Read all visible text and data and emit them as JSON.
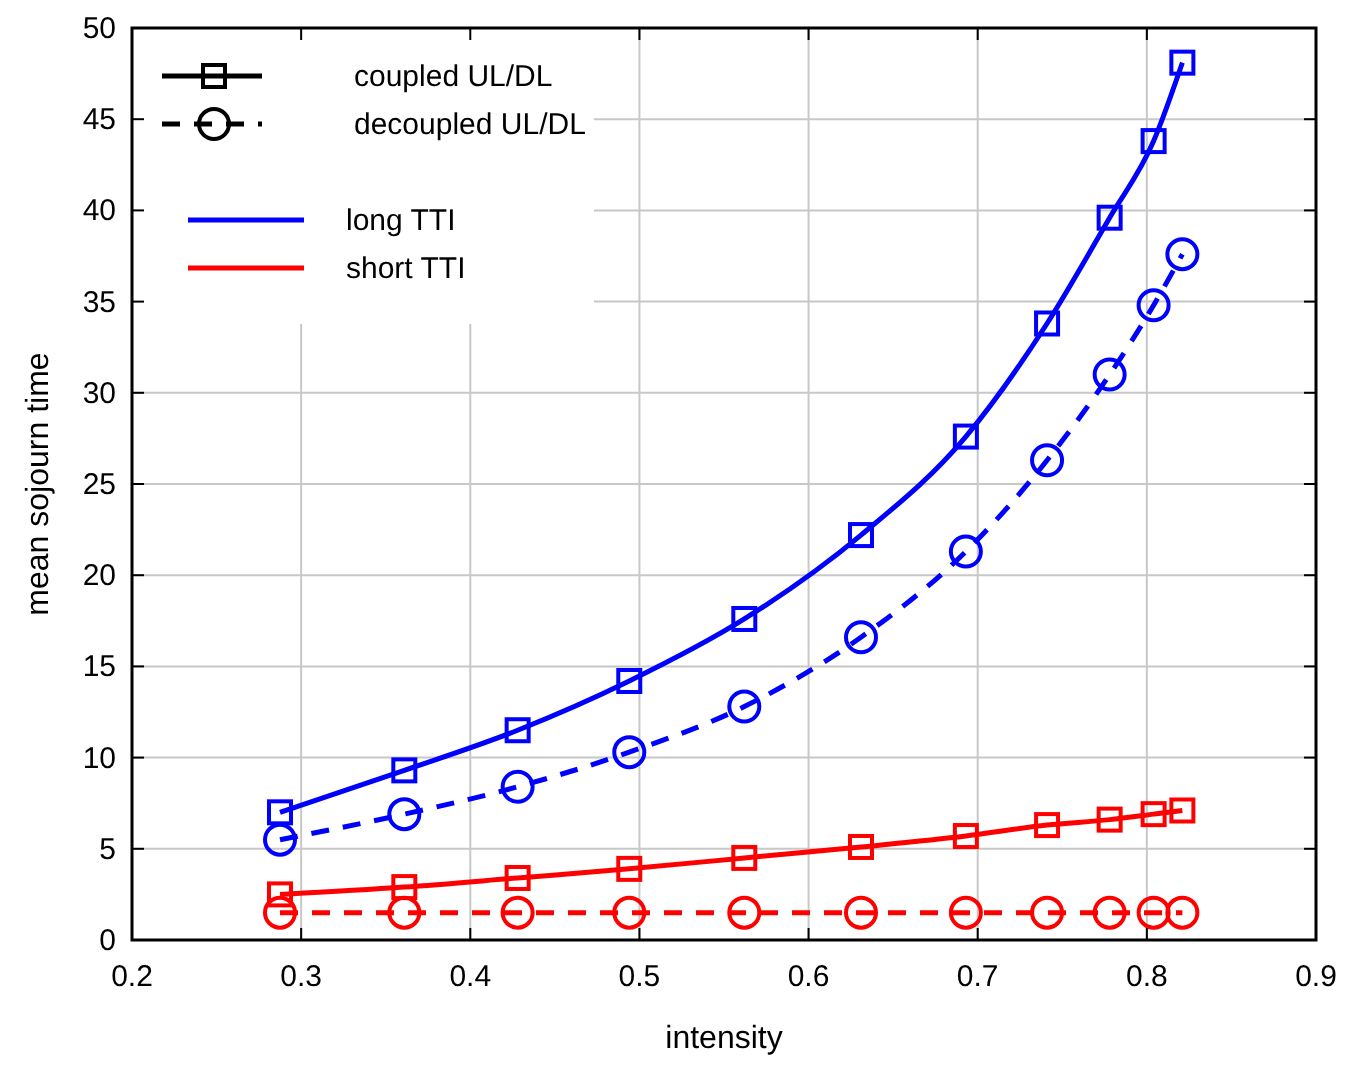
{
  "chart_data": {
    "type": "line",
    "xlabel": "intensity",
    "ylabel": "mean sojourn time",
    "x": [
      0.2875,
      0.361,
      0.428,
      0.494,
      0.562,
      0.631,
      0.693,
      0.741,
      0.778,
      0.804,
      0.821
    ],
    "xlim": [
      0.2,
      0.9
    ],
    "xticks": [
      0.2,
      0.3,
      0.4,
      0.5,
      0.6,
      0.7,
      0.8,
      0.9
    ],
    "ylim": [
      0,
      50
    ],
    "yticks": [
      0,
      5,
      10,
      15,
      20,
      25,
      30,
      35,
      40,
      45,
      50
    ],
    "grid": true,
    "legend": "top left",
    "annotations": [
      "coupled UL/DL",
      "decoupled UL/DL"
    ],
    "series": [
      {
        "name": "long TTI",
        "color": "#0000ff",
        "line_style": "solid",
        "marker": "square",
        "values": [
          7.0,
          9.3,
          11.5,
          14.2,
          17.6,
          22.2,
          27.6,
          33.8,
          39.6,
          43.8,
          48.1
        ]
      },
      {
        "color": "#0000ff",
        "line_style": "dashed",
        "marker": "circle",
        "values": [
          5.5,
          6.9,
          8.4,
          10.3,
          12.8,
          16.6,
          21.3,
          26.3,
          31.0,
          34.8,
          37.6
        ]
      },
      {
        "name": "short TTI",
        "color": "#ff0000",
        "line_style": "solid",
        "marker": "square",
        "values": [
          2.5,
          2.9,
          3.4,
          3.9,
          4.5,
          5.1,
          5.7,
          6.3,
          6.6,
          6.9,
          7.1
        ]
      },
      {
        "color": "#ff0000",
        "line_style": "dashed",
        "marker": "circle",
        "values": [
          1.5,
          1.5,
          1.5,
          1.5,
          1.5,
          1.5,
          1.5,
          1.5,
          1.5,
          1.5,
          1.5
        ]
      }
    ]
  }
}
